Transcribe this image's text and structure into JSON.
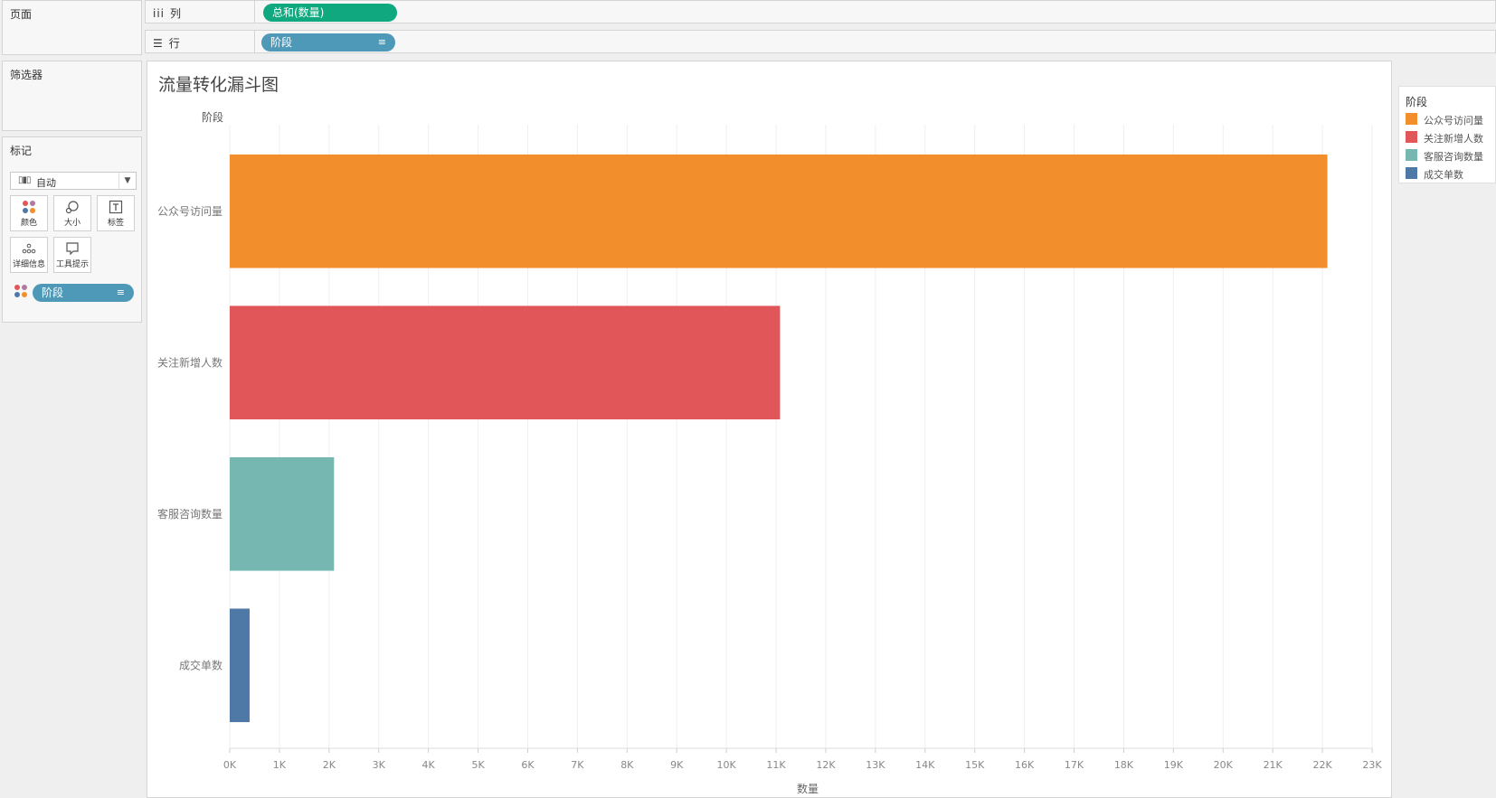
{
  "left_panel": {
    "pages_title": "页面",
    "filters_title": "筛选器",
    "marks": {
      "title": "标记",
      "type_label": "自动",
      "buttons": [
        {
          "label": "颜色",
          "icon": "color-dots-icon"
        },
        {
          "label": "大小",
          "icon": "size-icon"
        },
        {
          "label": "标签",
          "icon": "text-label-icon"
        },
        {
          "label": "详细信息",
          "icon": "detail-icon"
        },
        {
          "label": "工具提示",
          "icon": "tooltip-icon"
        }
      ],
      "color_pill": "阶段"
    }
  },
  "shelves": {
    "columns": {
      "label": "列",
      "pill": "总和(数量)"
    },
    "rows": {
      "label": "行",
      "pill": "阶段"
    }
  },
  "colors": {
    "green_pill": "#10a87f",
    "blue_pill": "#4f99b8",
    "series": [
      "#f28e2b",
      "#e15759",
      "#76b7b2",
      "#4e79a7"
    ]
  },
  "chart_data": {
    "type": "bar",
    "orientation": "horizontal",
    "title": "流量转化漏斗图",
    "row_header": "阶段",
    "xlabel": "数量",
    "categories": [
      "公众号访问量",
      "关注新增人数",
      "客服咨询数量",
      "成交单数"
    ],
    "values": [
      22100,
      11080,
      2100,
      400
    ],
    "xlim": [
      0,
      23000
    ],
    "xticks": [
      "0K",
      "1K",
      "2K",
      "3K",
      "4K",
      "5K",
      "6K",
      "7K",
      "8K",
      "9K",
      "10K",
      "11K",
      "12K",
      "13K",
      "14K",
      "15K",
      "16K",
      "17K",
      "18K",
      "19K",
      "20K",
      "21K",
      "22K",
      "23K"
    ],
    "grid": "vertical",
    "legend": {
      "title": "阶段",
      "position": "right",
      "items": [
        "公众号访问量",
        "关注新增人数",
        "客服咨询数量",
        "成交单数"
      ]
    }
  }
}
